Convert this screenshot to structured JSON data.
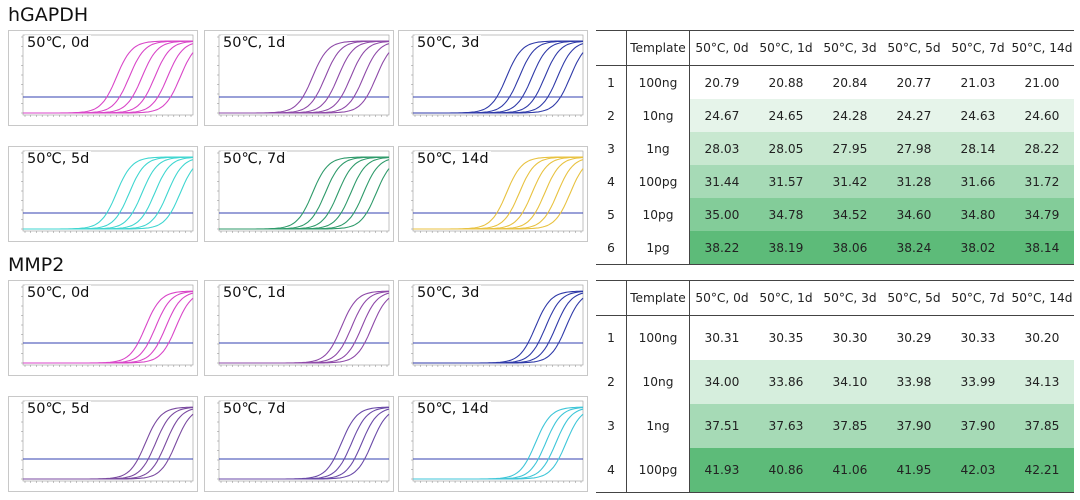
{
  "sections": [
    {
      "title": "hGAPDH",
      "panels": [
        {
          "label": "50℃, 0d",
          "color": "#d946c8",
          "curves": 6
        },
        {
          "label": "50℃, 1d",
          "color": "#8e4aa8",
          "curves": 6
        },
        {
          "label": "50℃, 3d",
          "color": "#2f3aa8",
          "curves": 6
        },
        {
          "label": "50℃, 5d",
          "color": "#3fd6d0",
          "curves": 6
        },
        {
          "label": "50℃, 7d",
          "color": "#2e9a6a",
          "curves": 6
        },
        {
          "label": "50℃, 14d",
          "color": "#e8c240",
          "curves": 6
        }
      ],
      "table": {
        "headers": [
          "",
          "Template",
          "50°C, 0d",
          "50°C, 1d",
          "50°C, 3d",
          "50°C, 5d",
          "50°C, 7d",
          "50°C, 14d"
        ],
        "rows": [
          [
            "1",
            "100ng",
            "20.79",
            "20.88",
            "20.84",
            "20.77",
            "21.03",
            "21.00"
          ],
          [
            "2",
            "10ng",
            "24.67",
            "24.65",
            "24.28",
            "24.27",
            "24.63",
            "24.60"
          ],
          [
            "3",
            "1ng",
            "28.03",
            "28.05",
            "27.95",
            "27.98",
            "28.14",
            "28.22"
          ],
          [
            "4",
            "100pg",
            "31.44",
            "31.57",
            "31.42",
            "31.28",
            "31.66",
            "31.72"
          ],
          [
            "5",
            "10pg",
            "35.00",
            "34.78",
            "34.52",
            "34.60",
            "34.80",
            "34.79"
          ],
          [
            "6",
            "1pg",
            "38.22",
            "38.19",
            "38.06",
            "38.24",
            "38.02",
            "38.14"
          ]
        ],
        "row_colors": [
          "#ffffff",
          "#e6f4ea",
          "#c8e8d0",
          "#a6dab6",
          "#83cc99",
          "#5dbb79"
        ]
      }
    },
    {
      "title": "MMP2",
      "panels": [
        {
          "label": "50℃, 0d",
          "color": "#d946c8",
          "curves": 4
        },
        {
          "label": "50℃, 1d",
          "color": "#8e4aa8",
          "curves": 4
        },
        {
          "label": "50℃, 3d",
          "color": "#2f3aa8",
          "curves": 4
        },
        {
          "label": "50℃, 5d",
          "color": "#7a4aa0",
          "curves": 4
        },
        {
          "label": "50℃, 7d",
          "color": "#6a4aa8",
          "curves": 4
        },
        {
          "label": "50℃, 14d",
          "color": "#3fc6d8",
          "curves": 4
        }
      ],
      "table": {
        "headers": [
          "",
          "Template",
          "50°C, 0d",
          "50°C, 1d",
          "50°C, 3d",
          "50°C, 5d",
          "50°C, 7d",
          "50°C, 14d"
        ],
        "rows": [
          [
            "1",
            "100ng",
            "30.31",
            "30.35",
            "30.30",
            "30.29",
            "30.33",
            "30.20"
          ],
          [
            "2",
            "10ng",
            "34.00",
            "33.86",
            "34.10",
            "33.98",
            "33.99",
            "34.13"
          ],
          [
            "3",
            "1ng",
            "37.51",
            "37.63",
            "37.85",
            "37.90",
            "37.90",
            "37.85"
          ],
          [
            "4",
            "100pg",
            "41.93",
            "40.86",
            "41.06",
            "41.95",
            "42.03",
            "42.21"
          ]
        ],
        "row_colors": [
          "#ffffff",
          "#d6eedd",
          "#a6dab6",
          "#5dbb79"
        ]
      }
    }
  ],
  "chart_data": [
    {
      "type": "table",
      "title": "hGAPDH",
      "categories": [
        "100ng",
        "10ng",
        "1ng",
        "100pg",
        "10pg",
        "1pg"
      ],
      "series": [
        {
          "name": "50°C, 0d",
          "values": [
            20.79,
            24.67,
            28.03,
            31.44,
            35.0,
            38.22
          ]
        },
        {
          "name": "50°C, 1d",
          "values": [
            20.88,
            24.65,
            28.05,
            31.57,
            34.78,
            38.19
          ]
        },
        {
          "name": "50°C, 3d",
          "values": [
            20.84,
            24.28,
            27.95,
            31.42,
            34.52,
            38.06
          ]
        },
        {
          "name": "50°C, 5d",
          "values": [
            20.77,
            24.27,
            27.98,
            31.28,
            34.6,
            38.24
          ]
        },
        {
          "name": "50°C, 7d",
          "values": [
            21.03,
            24.63,
            28.14,
            31.66,
            34.8,
            38.02
          ]
        },
        {
          "name": "50°C, 14d",
          "values": [
            21.0,
            24.6,
            28.22,
            31.72,
            34.79,
            38.14
          ]
        }
      ]
    },
    {
      "type": "table",
      "title": "MMP2",
      "categories": [
        "100ng",
        "10ng",
        "1ng",
        "100pg"
      ],
      "series": [
        {
          "name": "50°C, 0d",
          "values": [
            30.31,
            34.0,
            37.51,
            41.93
          ]
        },
        {
          "name": "50°C, 1d",
          "values": [
            30.35,
            33.86,
            37.63,
            40.86
          ]
        },
        {
          "name": "50°C, 3d",
          "values": [
            30.3,
            34.1,
            37.85,
            41.06
          ]
        },
        {
          "name": "50°C, 5d",
          "values": [
            30.29,
            33.98,
            37.9,
            41.95
          ]
        },
        {
          "name": "50°C, 7d",
          "values": [
            30.33,
            33.99,
            37.9,
            42.03
          ]
        },
        {
          "name": "50°C, 14d",
          "values": [
            30.2,
            34.13,
            37.85,
            42.21
          ]
        }
      ]
    }
  ]
}
